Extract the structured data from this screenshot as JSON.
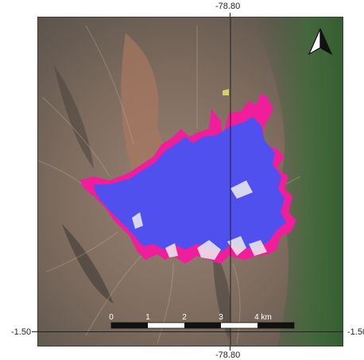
{
  "map": {
    "longitude_label": "-78.80",
    "latitude_label": "-1.50",
    "north_arrow_label": "N",
    "layers": {
      "snow_color": "#5050ee",
      "extra_color": "#f01e9a",
      "rock_color": "#7a6a5e",
      "vegetation_color": "#3f6a3a"
    }
  },
  "scale_bar": {
    "labels": [
      "0",
      "1",
      "2",
      "3",
      "4 km"
    ]
  }
}
